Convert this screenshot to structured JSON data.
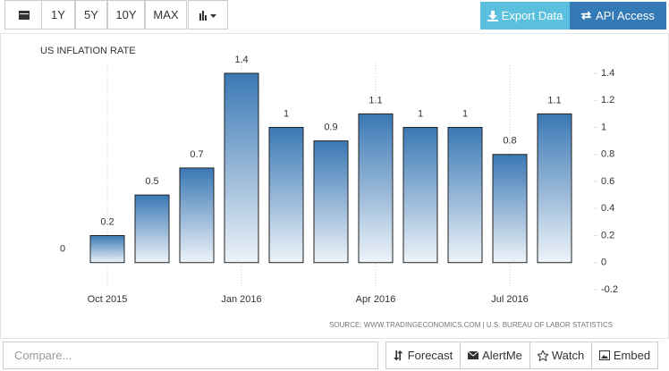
{
  "toolbar": {
    "ranges": [
      "1Y",
      "5Y",
      "10Y",
      "MAX"
    ],
    "export": "Export Data",
    "api": "API Access"
  },
  "chart_data": {
    "type": "bar",
    "title": "US INFLATION RATE",
    "source": "SOURCE: WWW.TRADINGECONOMICS.COM | U.S. BUREAU OF LABOR STATISTICS",
    "categories": [
      null,
      "Oct 2015",
      null,
      null,
      "Jan 2016",
      null,
      null,
      "Apr 2016",
      null,
      null,
      "Jul 2016",
      null
    ],
    "values": [
      0,
      0.2,
      0.5,
      0.7,
      1.4,
      1,
      0.9,
      1.1,
      1,
      1,
      0.8,
      1.1
    ],
    "color": "#3a78b4",
    "ylim": [
      -0.2,
      1.4
    ],
    "yticks": [
      -0.2,
      0,
      0.2,
      0.4,
      0.6,
      0.8,
      1,
      1.2,
      1.4
    ],
    "y_axis_side": "right",
    "grid": true
  },
  "footer": {
    "compare": "Compare...",
    "buttons": [
      "Forecast",
      "AlertMe",
      "Watch",
      "Embed"
    ]
  }
}
